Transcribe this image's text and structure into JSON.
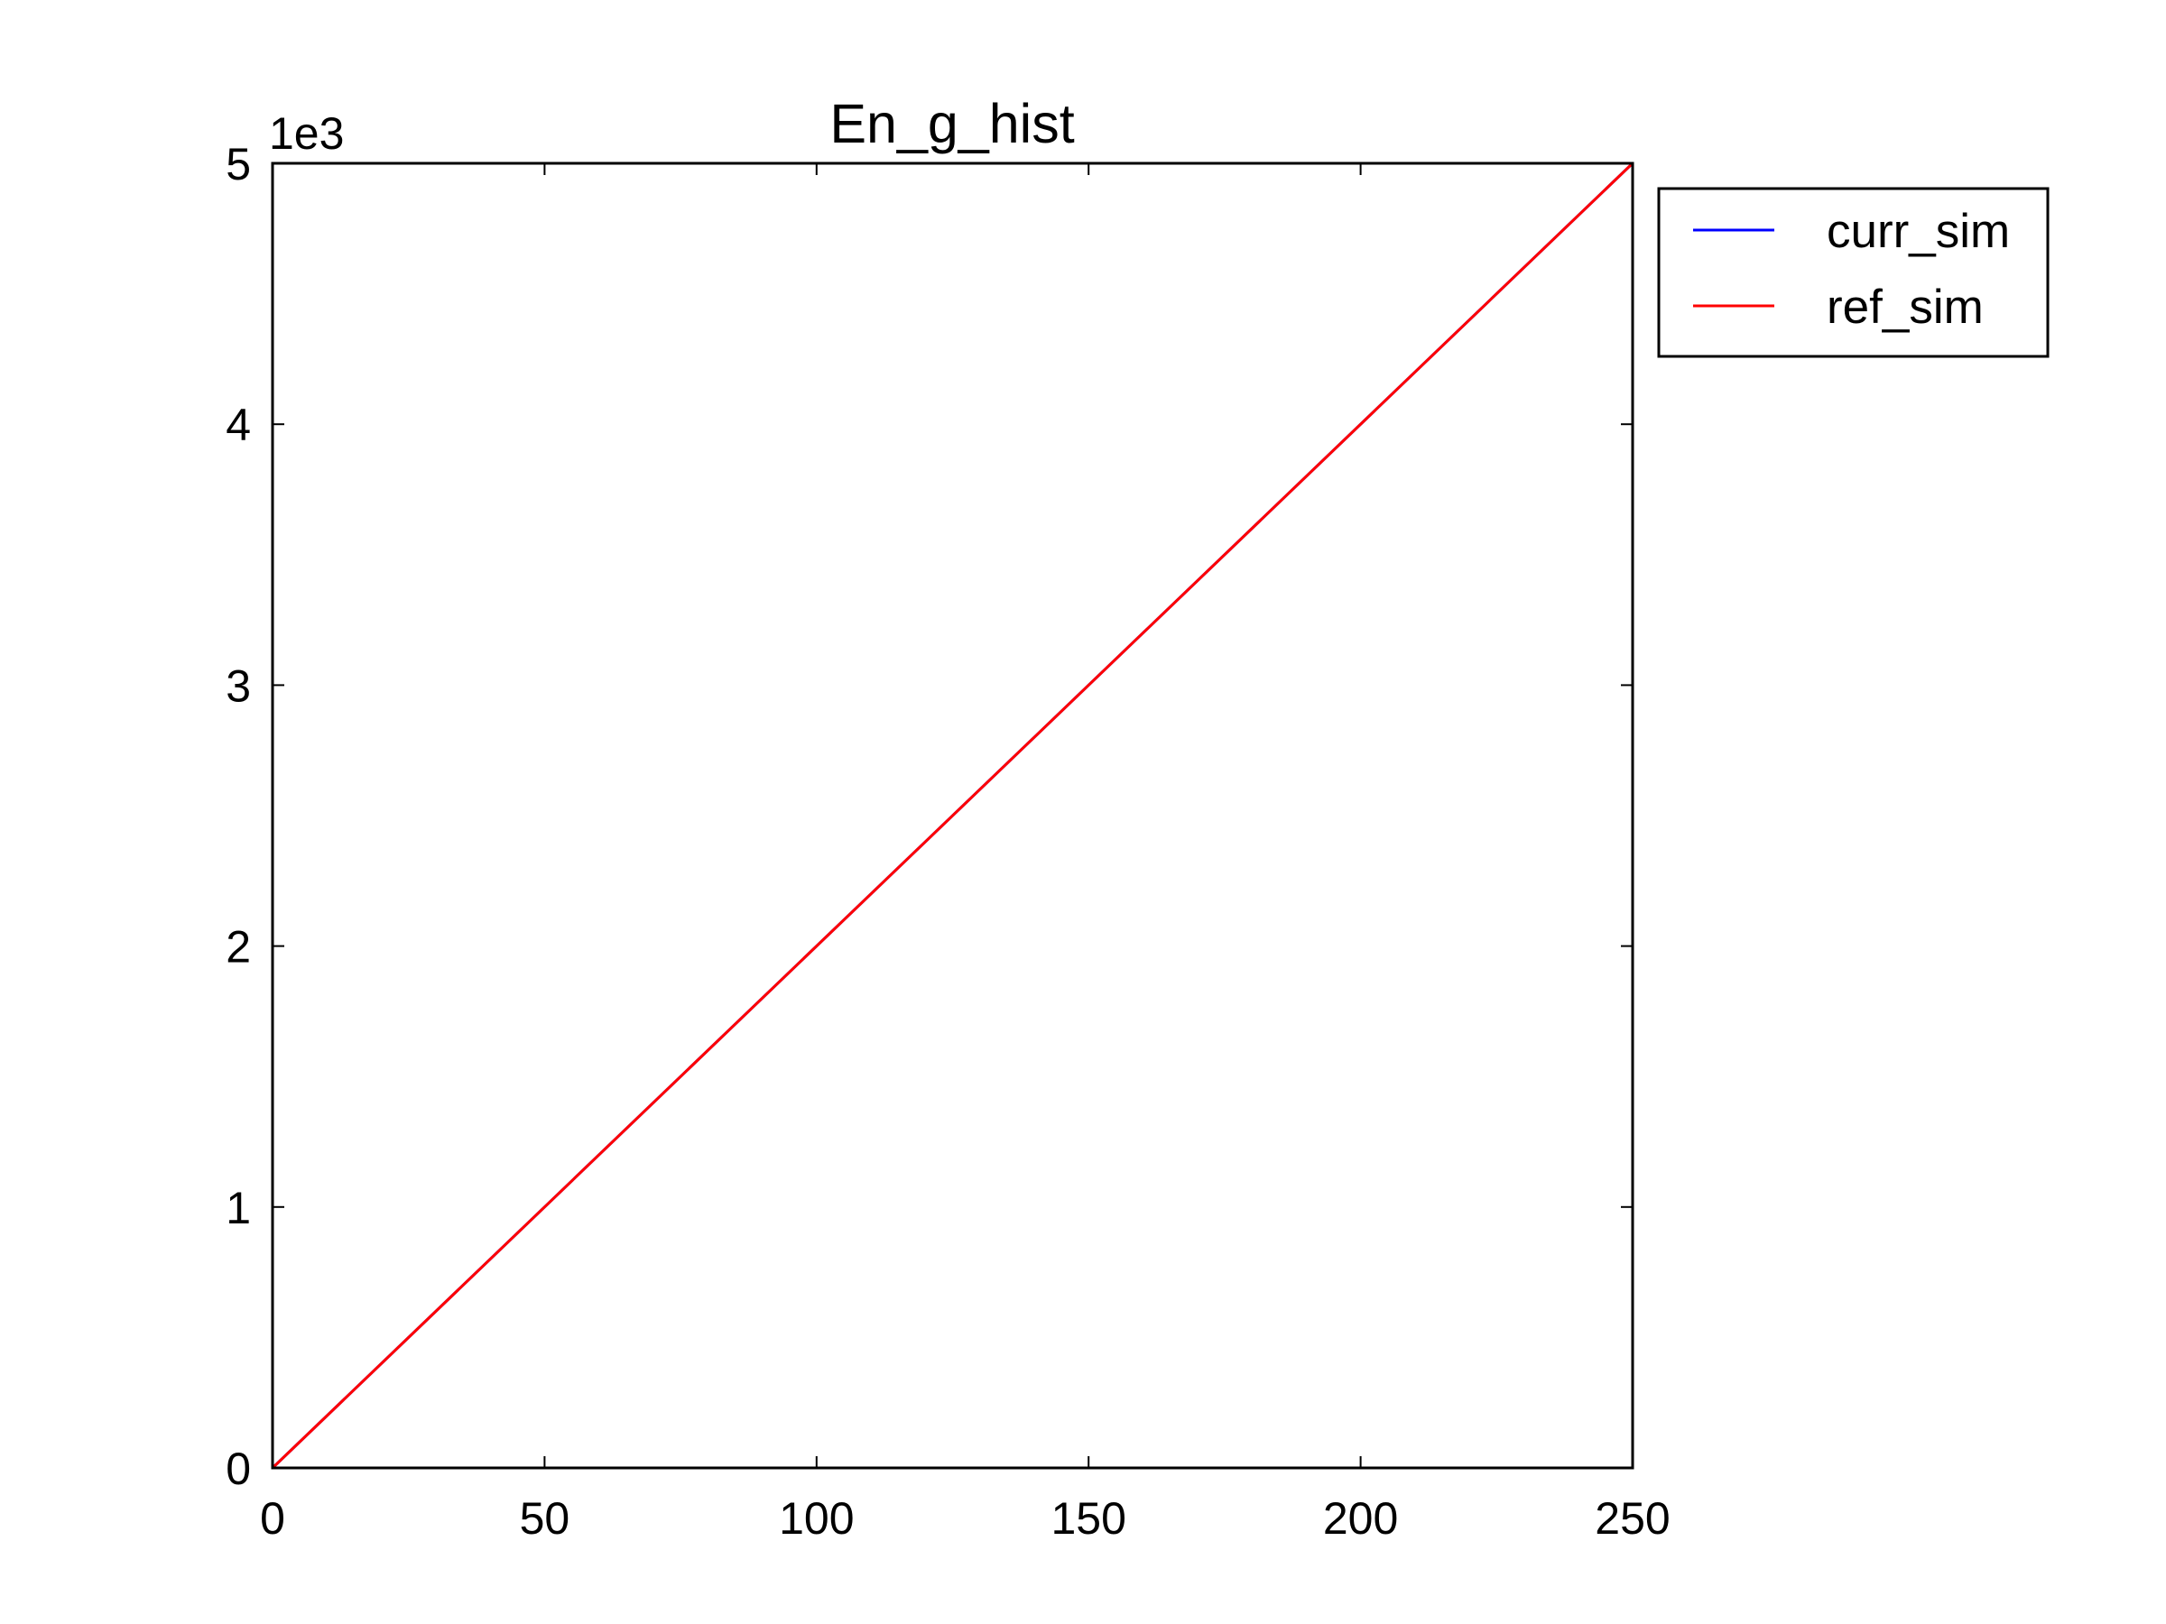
{
  "chart_data": {
    "type": "line",
    "title": "En_g_hist",
    "xlabel": "",
    "ylabel": "",
    "y_offset_label": "1e3",
    "xlim": [
      0,
      250
    ],
    "ylim": [
      0,
      5
    ],
    "xticks": [
      0,
      50,
      100,
      150,
      200,
      250
    ],
    "yticks": [
      0,
      1,
      2,
      3,
      4,
      5
    ],
    "xtick_labels": [
      "0",
      "50",
      "100",
      "150",
      "200",
      "250"
    ],
    "ytick_labels": [
      "0",
      "1",
      "2",
      "3",
      "4",
      "5"
    ],
    "grid": false,
    "legend_position": "outside-right-top",
    "series": [
      {
        "name": "curr_sim",
        "color": "#0000ff",
        "x": [
          0,
          250
        ],
        "y": [
          0,
          5
        ]
      },
      {
        "name": "ref_sim",
        "color": "#ff0000",
        "x": [
          0,
          250
        ],
        "y": [
          0,
          5
        ]
      }
    ]
  }
}
